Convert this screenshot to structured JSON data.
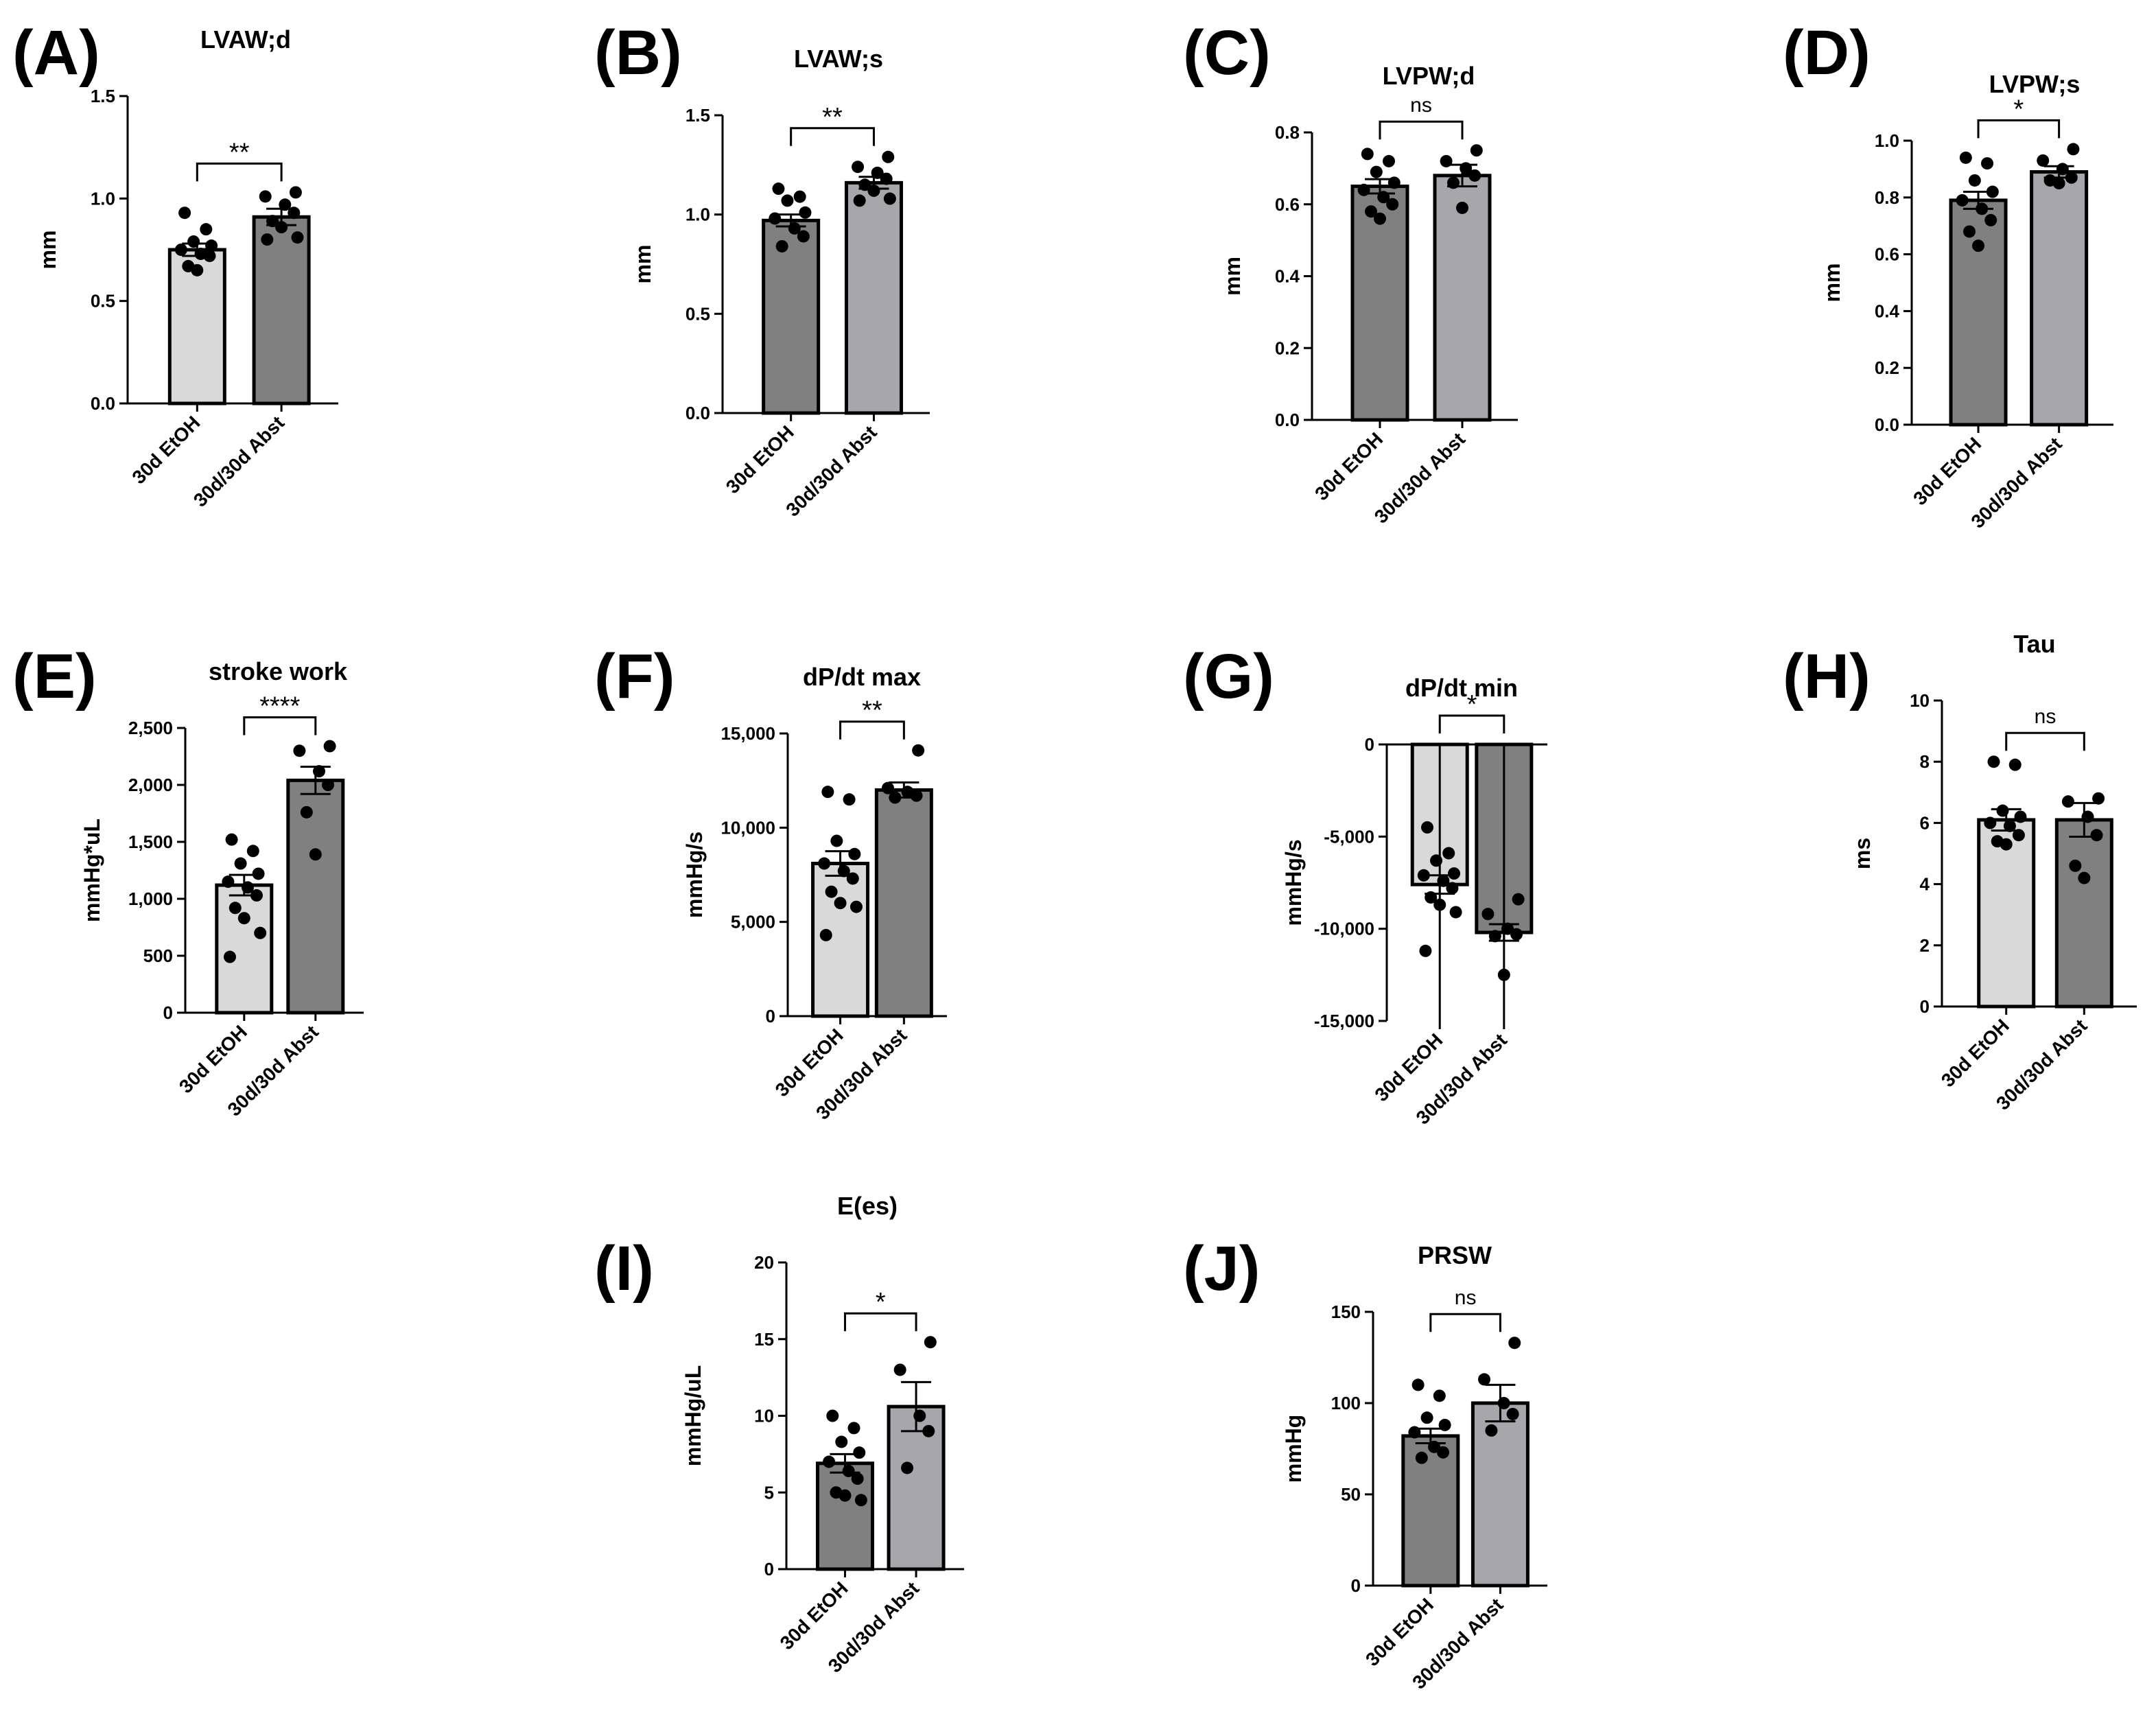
{
  "figure_colors": {
    "light": "#d9d9d9",
    "dark": "#808080",
    "mid": "#a6a6ab"
  },
  "chart_data": [
    {
      "panel": "(A)",
      "title": "LVAW;d",
      "type": "bar",
      "ylabel": "mm",
      "categories": [
        "30d EtOH",
        "30d/30d Abst"
      ],
      "values": [
        0.75,
        0.91
      ],
      "sem": [
        0.03,
        0.04
      ],
      "ylim": [
        0,
        1.5
      ],
      "yticks": [
        0.0,
        0.5,
        1.0,
        1.5
      ],
      "tick_labels": [
        "0.0",
        "0.5",
        "1.0",
        "1.5"
      ],
      "fill": [
        "light",
        "dark"
      ],
      "significance": "**",
      "points": [
        [
          0.93,
          0.85,
          0.79,
          0.77,
          0.75,
          0.73,
          0.72,
          0.67,
          0.65
        ],
        [
          1.03,
          1.01,
          0.97,
          0.93,
          0.89,
          0.86,
          0.81,
          0.8
        ]
      ]
    },
    {
      "panel": "(B)",
      "title": "LVAW;s",
      "type": "bar",
      "ylabel": "mm",
      "categories": [
        "30d EtOH",
        "30d/30d Abst"
      ],
      "values": [
        0.97,
        1.16
      ],
      "sem": [
        0.03,
        0.03
      ],
      "ylim": [
        0,
        1.5
      ],
      "yticks": [
        0.0,
        0.5,
        1.0,
        1.5
      ],
      "tick_labels": [
        "0.0",
        "0.5",
        "1.0",
        "1.5"
      ],
      "fill": [
        "dark",
        "mid"
      ],
      "significance": "**",
      "points": [
        [
          1.13,
          1.09,
          1.07,
          1.01,
          0.98,
          0.93,
          0.89,
          0.84
        ],
        [
          1.29,
          1.24,
          1.21,
          1.18,
          1.15,
          1.12,
          1.08,
          1.07
        ]
      ]
    },
    {
      "panel": "(C)",
      "title": "LVPW;d",
      "type": "bar",
      "ylabel": "mm",
      "categories": [
        "30d EtOH",
        "30d/30d Abst"
      ],
      "values": [
        0.65,
        0.68
      ],
      "sem": [
        0.02,
        0.03
      ],
      "ylim": [
        0,
        0.8
      ],
      "yticks": [
        0.0,
        0.2,
        0.4,
        0.6,
        0.8
      ],
      "tick_labels": [
        "0.0",
        "0.2",
        "0.4",
        "0.6",
        "0.8"
      ],
      "fill": [
        "dark",
        "mid"
      ],
      "significance": "ns",
      "points": [
        [
          0.74,
          0.72,
          0.69,
          0.66,
          0.64,
          0.62,
          0.6,
          0.58,
          0.56
        ],
        [
          0.75,
          0.72,
          0.7,
          0.68,
          0.66,
          0.59
        ]
      ]
    },
    {
      "panel": "(D)",
      "title": "LVPW;s",
      "type": "bar",
      "ylabel": "mm",
      "categories": [
        "30d EtOH",
        "30d/30d Abst"
      ],
      "values": [
        0.79,
        0.89
      ],
      "sem": [
        0.03,
        0.02
      ],
      "ylim": [
        0,
        1.0
      ],
      "yticks": [
        0.0,
        0.2,
        0.4,
        0.6,
        0.8,
        1.0
      ],
      "tick_labels": [
        "0.0",
        "0.2",
        "0.4",
        "0.6",
        "0.8",
        "1.0"
      ],
      "fill": [
        "dark",
        "mid"
      ],
      "significance": "*",
      "points": [
        [
          0.94,
          0.92,
          0.86,
          0.82,
          0.79,
          0.76,
          0.72,
          0.68,
          0.63
        ],
        [
          0.97,
          0.93,
          0.9,
          0.87,
          0.86,
          0.85
        ]
      ]
    },
    {
      "panel": "(E)",
      "title": "stroke work",
      "type": "bar",
      "ylabel": "mmHg*uL",
      "categories": [
        "30d EtOH",
        "30d/30d Abst"
      ],
      "values": [
        1120,
        2040
      ],
      "sem": [
        90,
        120
      ],
      "ylim": [
        0,
        2500
      ],
      "yticks": [
        0,
        500,
        1000,
        1500,
        2000,
        2500
      ],
      "tick_labels": [
        "0",
        "500",
        "1,000",
        "1,500",
        "2,000",
        "2,500"
      ],
      "fill": [
        "light",
        "dark"
      ],
      "significance": "****",
      "points": [
        [
          1520,
          1420,
          1310,
          1220,
          1150,
          1100,
          1030,
          920,
          830,
          700,
          490
        ],
        [
          2340,
          2300,
          2120,
          2000,
          1760,
          1390
        ]
      ]
    },
    {
      "panel": "(F)",
      "title": "dP/dt max",
      "type": "bar",
      "ylabel": "mmHg/s",
      "categories": [
        "30d EtOH",
        "30d/30d Abst"
      ],
      "values": [
        8100,
        12000
      ],
      "sem": [
        650,
        400
      ],
      "ylim": [
        0,
        15000
      ],
      "yticks": [
        0,
        5000,
        10000,
        15000
      ],
      "tick_labels": [
        "0",
        "5,000",
        "10,000",
        "15,000"
      ],
      "fill": [
        "light",
        "dark"
      ],
      "significance": "**",
      "points": [
        [
          11900,
          11500,
          9300,
          8600,
          8100,
          7700,
          7300,
          6600,
          6000,
          5800,
          4300
        ],
        [
          14100,
          12100,
          11900,
          11700,
          11600
        ]
      ]
    },
    {
      "panel": "(G)",
      "title": "dP/dt min",
      "type": "bar",
      "ylabel": "mmHg/s",
      "categories": [
        "30d EtOH",
        "30d/30d Abst"
      ],
      "values": [
        -7600,
        -10200
      ],
      "sem": [
        500,
        450
      ],
      "ylim": [
        -15000,
        0
      ],
      "yticks": [
        -15000,
        -10000,
        -5000,
        0
      ],
      "tick_labels": [
        "-15,000",
        "-10,000",
        "-5,000",
        "0"
      ],
      "fill": [
        "light",
        "dark"
      ],
      "significance": "*",
      "points": [
        [
          -4500,
          -5900,
          -6300,
          -7000,
          -7100,
          -7400,
          -7800,
          -8300,
          -8700,
          -9100,
          -11200
        ],
        [
          -8400,
          -9200,
          -10000,
          -10300,
          -10400,
          -12500
        ]
      ]
    },
    {
      "panel": "(H)",
      "title": "Tau",
      "type": "bar",
      "ylabel": "ms",
      "categories": [
        "30d EtOH",
        "30d/30d Abst"
      ],
      "values": [
        6.1,
        6.1
      ],
      "sem": [
        0.35,
        0.55
      ],
      "ylim": [
        0,
        10
      ],
      "yticks": [
        0,
        2,
        4,
        6,
        8,
        10
      ],
      "tick_labels": [
        "0",
        "2",
        "4",
        "6",
        "8",
        "10"
      ],
      "fill": [
        "light",
        "dark"
      ],
      "significance": "ns",
      "points": [
        [
          8.0,
          7.9,
          6.4,
          6.2,
          6.0,
          5.9,
          5.6,
          5.4,
          5.3
        ],
        [
          6.8,
          6.7,
          6.2,
          5.6,
          4.6,
          4.2
        ]
      ]
    },
    {
      "panel": "(I)",
      "title": "E(es)",
      "type": "bar",
      "ylabel": "mmHg/uL",
      "categories": [
        "30d EtOH",
        "30d/30d Abst"
      ],
      "values": [
        6.9,
        10.6
      ],
      "sem": [
        0.6,
        1.6
      ],
      "ylim": [
        0,
        20
      ],
      "yticks": [
        0,
        5,
        10,
        15,
        20
      ],
      "tick_labels": [
        "0",
        "5",
        "10",
        "15",
        "20"
      ],
      "fill": [
        "dark",
        "mid"
      ],
      "significance": "*",
      "points": [
        [
          10.0,
          9.2,
          8.3,
          7.6,
          7.0,
          6.4,
          5.9,
          5.0,
          4.8,
          4.5
        ],
        [
          14.8,
          13.0,
          10.0,
          9.0,
          6.6
        ]
      ]
    },
    {
      "panel": "(J)",
      "title": "PRSW",
      "type": "bar",
      "ylabel": "mmHg",
      "categories": [
        "30d EtOH",
        "30d/30d Abst"
      ],
      "values": [
        82,
        100
      ],
      "sem": [
        4,
        10
      ],
      "ylim": [
        0,
        150
      ],
      "yticks": [
        0,
        50,
        100,
        150
      ],
      "tick_labels": [
        "0",
        "50",
        "100",
        "150"
      ],
      "fill": [
        "dark",
        "mid"
      ],
      "significance": "ns",
      "points": [
        [
          110,
          104,
          92,
          88,
          84,
          76,
          73,
          70
        ],
        [
          133,
          113,
          100,
          94,
          85
        ]
      ]
    }
  ]
}
